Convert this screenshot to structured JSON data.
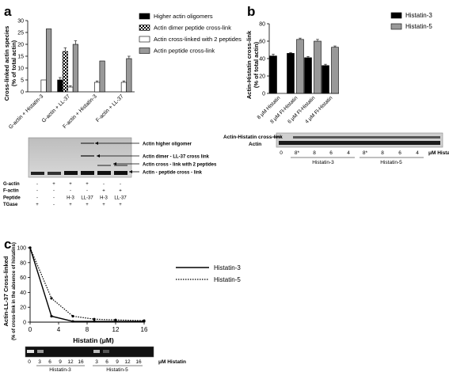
{
  "panel_labels": {
    "a": "a",
    "b": "b",
    "c": "c"
  },
  "chart_data": [
    {
      "type": "bar",
      "panel": "a",
      "ylabel_line1": "Cross-linked actin species",
      "ylabel_line2": "(% of total actin)",
      "ylim": [
        0,
        30
      ],
      "yticks": [
        "0",
        "5",
        "10",
        "15",
        "20",
        "25",
        "30"
      ],
      "categories": [
        "G-actin + Histatin-3",
        "G-actin + LL-37",
        "F-actin + Histatin-3",
        "F-actin + LL-37"
      ],
      "series": [
        {
          "name": "Higher actin oligomers",
          "color": "#000000",
          "values": [
            0,
            5,
            0,
            0
          ]
        },
        {
          "name": "Actin dimer peptide cross-link",
          "color": "pattern",
          "values": [
            0,
            17,
            0,
            0
          ]
        },
        {
          "name": "Actin cross-linked with 2 peptides",
          "color": "#ffffff",
          "values": [
            5,
            2,
            4,
            4
          ]
        },
        {
          "name": "Actin peptide cross-link",
          "color": "#999999",
          "values": [
            26.5,
            20,
            13,
            14
          ]
        }
      ],
      "errors": [
        [
          0,
          1,
          0,
          0
        ],
        [
          0,
          1.5,
          0,
          0
        ],
        [
          0,
          0.6,
          0.6,
          0.6
        ],
        [
          0,
          1.5,
          0,
          1
        ]
      ]
    },
    {
      "type": "bar",
      "panel": "b",
      "ylabel_line1": "Actin-Histatin cross-link",
      "ylabel_line2": "(% of total actin)",
      "ylim": [
        0,
        80
      ],
      "yticks": [
        "0",
        "20",
        "40",
        "60",
        "80"
      ],
      "categories": [
        "8 μM Histatin",
        "8 μM Fl-Histatin",
        "6 μM Fl-Histatin",
        "4 μM Fl-Histatin"
      ],
      "series": [
        {
          "name": "Histatin-3",
          "color": "#000000",
          "values": [
            43,
            46,
            41,
            32
          ]
        },
        {
          "name": "Histatin-5",
          "color": "#999999",
          "values": [
            0,
            62,
            60,
            53
          ]
        }
      ],
      "errors": [
        [
          2,
          0.8,
          1.5,
          1.5
        ],
        [
          0,
          1.5,
          2,
          1.5
        ]
      ]
    },
    {
      "type": "line",
      "panel": "c",
      "ylabel_line1": "Actin-LL-37 Cross-linked",
      "ylabel_line2": "(% of cross-link in the absence of histatins)",
      "xlabel": "Histatin (μM)",
      "xlim": [
        0,
        16
      ],
      "ylim": [
        0,
        100
      ],
      "xticks": [
        "0",
        "4",
        "8",
        "12",
        "16"
      ],
      "yticks": [
        "0",
        "20",
        "40",
        "60",
        "80",
        "100"
      ],
      "series": [
        {
          "name": "Histatin-3",
          "style": "solid",
          "x": [
            0,
            3,
            6,
            9,
            12,
            16
          ],
          "y": [
            100,
            8,
            1,
            1,
            1,
            1
          ]
        },
        {
          "name": "Histatin-5",
          "style": "dotted",
          "x": [
            0,
            3,
            6,
            9,
            12,
            16
          ],
          "y": [
            100,
            32,
            8,
            4,
            3,
            2
          ]
        }
      ]
    }
  ],
  "gel_a": {
    "annotations": [
      "Actin higher oligomer",
      "Actin dimer - LL-37 cross link",
      "Actin cross - link with 2 peptides",
      "Actin - peptide cross - link"
    ],
    "row_labels": [
      "G-actin",
      "F-actin",
      "Peptide",
      "TGase"
    ],
    "rows": [
      [
        "-",
        "+",
        "+",
        "+",
        "-",
        "-"
      ],
      [
        "-",
        "-",
        "-",
        "-",
        "+",
        "+"
      ],
      [
        "-",
        "-",
        "H-3",
        "LL-37",
        "H-3",
        "LL-37"
      ],
      [
        "+",
        "-",
        "+",
        "+",
        "+",
        "+"
      ]
    ]
  },
  "gel_b": {
    "side_labels": [
      "Actin-Histatin cross-link",
      "Actin"
    ],
    "lanes": [
      "0",
      "8*",
      "8",
      "6",
      "4",
      "8*",
      "8",
      "6",
      "4"
    ],
    "unit": "μM Histatin",
    "groups": [
      "Histatin-3",
      "Histatin-5"
    ]
  },
  "gel_c": {
    "lanes": [
      "0",
      "3",
      "6",
      "9",
      "12",
      "16",
      "3",
      "6",
      "9",
      "12",
      "16"
    ],
    "unit": "μM Histatin",
    "groups": [
      "Histatin-3",
      "Histatin-5"
    ]
  }
}
